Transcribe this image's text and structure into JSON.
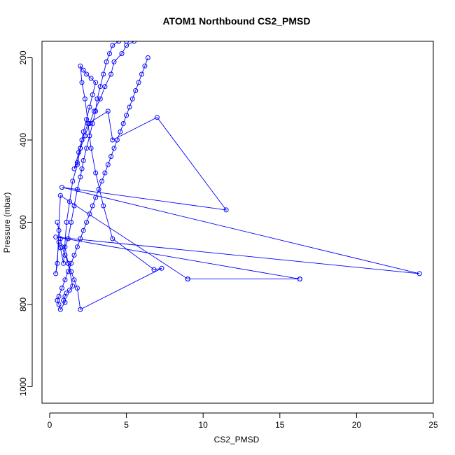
{
  "colors": {
    "series": "#0000ff",
    "axis": "#000000",
    "background": "#ffffff"
  },
  "chart_data": {
    "type": "line",
    "title": "ATOM1 Northbound CS2_PMSD",
    "xlabel": "CS2_PMSD",
    "ylabel": "Pressure (mbar)",
    "xlim": [
      -0.5,
      25
    ],
    "ylim": [
      1040,
      160
    ],
    "y_inverted": true,
    "grid": false,
    "legend": "none",
    "markers": "open-circle",
    "xticks": [
      0,
      5,
      10,
      15,
      20,
      25
    ],
    "yticks": [
      200,
      400,
      600,
      800,
      1000
    ],
    "series": [
      {
        "x": [
          0.5,
          0.6,
          0.7,
          1.0,
          0.9,
          1.0,
          1.1,
          1.3,
          1.5,
          1.2,
          1.0,
          1.2,
          1.4,
          1.6,
          1.8,
          2.0,
          2.1,
          2.2,
          2.4,
          2.6,
          2.8,
          3.0,
          3.1,
          3.3,
          3.5,
          3.7,
          3.9,
          4.1,
          4.5,
          5.0,
          5.5,
          5.0,
          4.7,
          4.2,
          4.0,
          3.6,
          3.3,
          2.9,
          2.6,
          2.3,
          2.0,
          1.8,
          1.6,
          1.9,
          2.1,
          2.5,
          3.8,
          4.1,
          7.0,
          11.5,
          0.8,
          24.1,
          0.4,
          16.3,
          9.0,
          16.3,
          9.0,
          0.7,
          0.5,
          0.4,
          0.6,
          0.7,
          0.9,
          1.1,
          1.3,
          1.5,
          1.8,
          2.0,
          2.2,
          2.4,
          2.6,
          2.8,
          3.0,
          2.7,
          2.4,
          2.2,
          2.0,
          2.1,
          2.3,
          2.5,
          2.7,
          3.0,
          3.5,
          4.1,
          6.8,
          7.3,
          2.0,
          1.8,
          1.6,
          1.4,
          1.2,
          1.0,
          0.8,
          0.7,
          0.6,
          0.5
        ],
        "y": [
          790,
          800,
          812,
          795,
          790,
          780,
          772,
          765,
          755,
          700,
          660,
          640,
          600,
          560,
          520,
          490,
          470,
          450,
          420,
          390,
          360,
          330,
          300,
          270,
          240,
          210,
          190,
          170,
          160,
          160,
          160,
          170,
          190,
          210,
          240,
          270,
          300,
          330,
          360,
          390,
          420,
          455,
          470,
          430,
          400,
          360,
          330,
          400,
          345,
          570,
          515,
          725,
          636,
          738,
          738,
          738,
          738,
          535,
          700,
          725,
          648,
          662,
          700,
          600,
          550,
          500,
          460,
          420,
          380,
          350,
          320,
          290,
          260,
          250,
          240,
          230,
          220,
          260,
          300,
          360,
          420,
          480,
          560,
          640,
          715,
          712,
          812,
          760,
          740,
          720,
          700,
          680,
          660,
          640,
          620,
          600
        ]
      },
      {
        "x": [
          0.5,
          0.6,
          0.8,
          1.0,
          1.2,
          1.4,
          1.6,
          1.8,
          2.0,
          2.2,
          2.4,
          2.6,
          2.8,
          3.0,
          3.2,
          3.4,
          3.6,
          3.8,
          4.0,
          4.2,
          4.4,
          4.6,
          4.8,
          5.0,
          5.2,
          5.4,
          5.6,
          5.8,
          6.0,
          6.2,
          6.4
        ],
        "y": [
          790,
          780,
          760,
          740,
          720,
          700,
          680,
          660,
          640,
          620,
          600,
          580,
          560,
          540,
          520,
          500,
          480,
          460,
          440,
          420,
          400,
          380,
          360,
          340,
          320,
          300,
          280,
          260,
          240,
          220,
          200
        ]
      }
    ]
  }
}
